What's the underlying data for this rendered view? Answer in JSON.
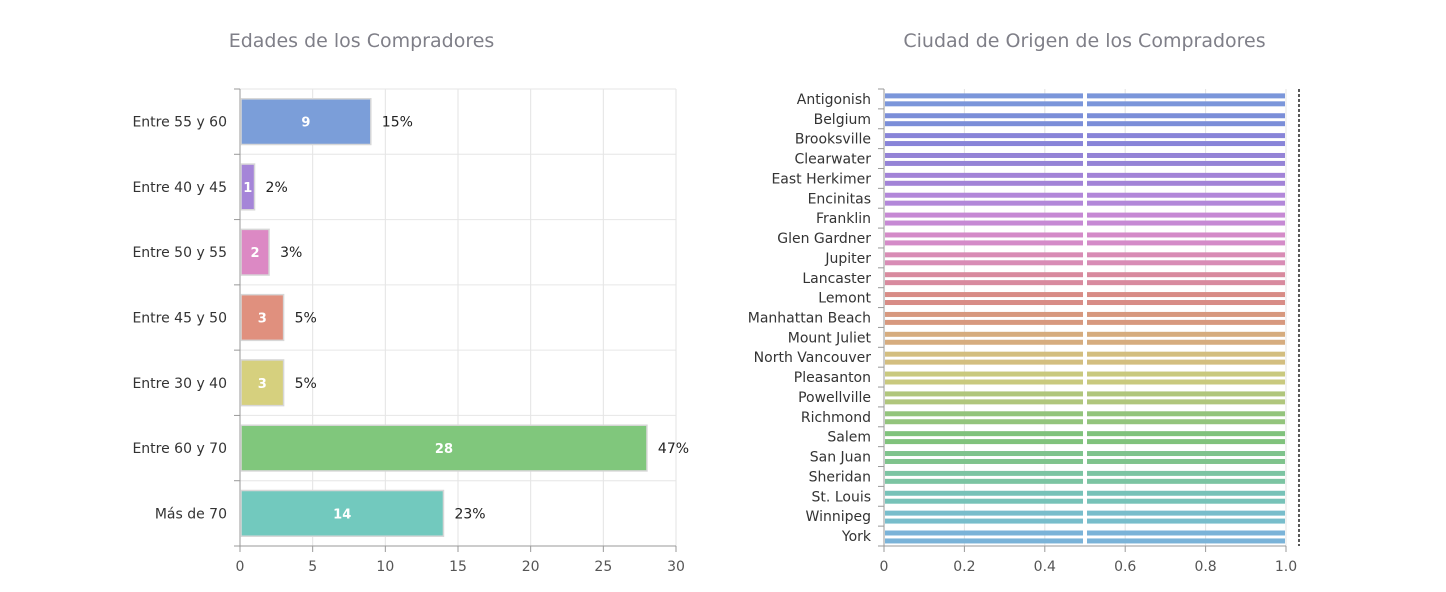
{
  "chart_data": [
    {
      "type": "bar",
      "orientation": "horizontal",
      "title": "Edades de los Compradores",
      "categories": [
        "Entre 55 y 60",
        "Entre 40 y 45",
        "Entre 50 y 55",
        "Entre 45 y 50",
        "Entre 30 y 40",
        "Entre 60 y 70",
        "Más de 70"
      ],
      "values": [
        9,
        1,
        2,
        3,
        3,
        28,
        14
      ],
      "percent_labels": [
        "15%",
        "2%",
        "3%",
        "5%",
        "5%",
        "47%",
        "23%"
      ],
      "colors": [
        "#7b9ed9",
        "#a585d8",
        "#dc89c4",
        "#e0907e",
        "#d6d07e",
        "#80c77c",
        "#72c9be"
      ],
      "xlim": [
        0,
        30
      ],
      "xticks": [
        0,
        5,
        10,
        15,
        20,
        25,
        30
      ],
      "grid": true
    },
    {
      "type": "bar",
      "orientation": "horizontal",
      "title": "Ciudad de Origen de los Compradores",
      "categories": [
        "Antigonish",
        "Belgium",
        "Brooksville",
        "Clearwater",
        "East Herkimer",
        "Encinitas",
        "Franklin",
        "Glen Gardner",
        "Jupiter",
        "Lancaster",
        "Lemont",
        "Manhattan Beach",
        "Mount Juliet",
        "North Vancouver",
        "Pleasanton",
        "Powellville",
        "Richmond",
        "Salem",
        "San Juan",
        "Sheridan",
        "St. Louis",
        "Winnipeg",
        "York"
      ],
      "values": [
        1,
        1,
        1,
        1,
        1,
        1,
        1,
        1,
        1,
        1,
        1,
        1,
        1,
        1,
        1,
        1,
        1,
        1,
        1,
        1,
        1,
        1,
        1
      ],
      "bars_per_category": 2,
      "colors": [
        "#7b96da",
        "#7b8ed8",
        "#8884d8",
        "#9483d6",
        "#a283d7",
        "#b287d9",
        "#c689d4",
        "#d48bc8",
        "#d88cb5",
        "#d88a9e",
        "#d88c86",
        "#d7987e",
        "#d6ac7e",
        "#d3be7f",
        "#c9c97e",
        "#b0c67c",
        "#93c47c",
        "#80c27c",
        "#7fc38c",
        "#7cc4a2",
        "#77c2b8",
        "#78bdcb",
        "#7ab3d8"
      ],
      "xlim": [
        0,
        1.0
      ],
      "xticks": [
        "0",
        "0.2",
        "0.4",
        "0.6",
        "0.8",
        "1.0"
      ],
      "grid": true
    }
  ]
}
